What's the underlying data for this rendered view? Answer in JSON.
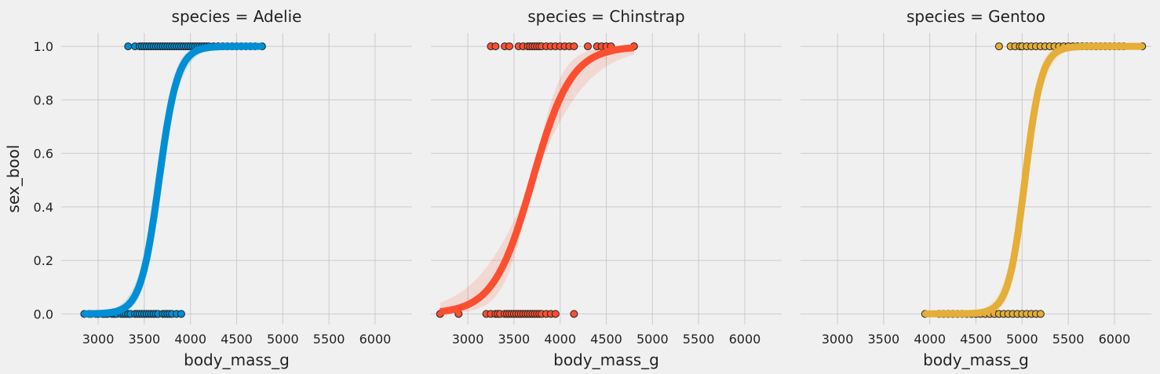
{
  "chart_data": {
    "type": "scatter",
    "layout": "facet-columns",
    "facet_variable": "species",
    "ylabel": "sex_bool",
    "xlim": [
      2600,
      6400
    ],
    "ylim": [
      -0.04,
      1.05
    ],
    "x_ticks": [
      3000,
      3500,
      4000,
      4500,
      5000,
      5500,
      6000
    ],
    "y_ticks": [
      0.0,
      0.2,
      0.4,
      0.6,
      0.8,
      1.0
    ],
    "y_tick_labels": [
      "0.0",
      "0.2",
      "0.4",
      "0.6",
      "0.8",
      "1.0"
    ],
    "grid": true,
    "fit": "logistic regression with confidence band",
    "panels": [
      {
        "title": "species = Adelie",
        "xlabel": "body_mass_g",
        "color": "#008fd5",
        "logistic": {
          "midpoint": 3660,
          "scale": 100
        },
        "band_scale": [
          80,
          125
        ],
        "x_range": [
          2850,
          4775
        ],
        "points_y1": [
          3325,
          3400,
          3450,
          3475,
          3500,
          3525,
          3550,
          3575,
          3600,
          3625,
          3650,
          3675,
          3700,
          3725,
          3750,
          3775,
          3800,
          3825,
          3850,
          3875,
          3900,
          3925,
          3950,
          3975,
          4000,
          4025,
          4050,
          4075,
          4100,
          4125,
          4150,
          4175,
          4200,
          4250,
          4300,
          4350,
          4400,
          4450,
          4500,
          4550,
          4600,
          4650,
          4700,
          4775
        ],
        "points_y0": [
          2850,
          2900,
          2925,
          2975,
          3000,
          3050,
          3075,
          3100,
          3150,
          3175,
          3200,
          3250,
          3275,
          3300,
          3325,
          3350,
          3400,
          3425,
          3450,
          3475,
          3500,
          3525,
          3550,
          3575,
          3600,
          3625,
          3650,
          3700,
          3725,
          3750,
          3775,
          3800,
          3850,
          3900
        ]
      },
      {
        "title": "species = Chinstrap",
        "xlabel": "body_mass_g",
        "color": "#fc4f30",
        "logistic": {
          "midpoint": 3700,
          "scale": 210
        },
        "band_scale": [
          150,
          320
        ],
        "x_range": [
          2700,
          4800
        ],
        "points_y1": [
          3250,
          3300,
          3400,
          3450,
          3550,
          3600,
          3650,
          3675,
          3700,
          3725,
          3750,
          3775,
          3800,
          3850,
          3900,
          3950,
          4000,
          4050,
          4100,
          4150,
          4300,
          4400,
          4450,
          4500,
          4550,
          4800
        ],
        "points_y0": [
          2700,
          2900,
          3200,
          3250,
          3300,
          3325,
          3350,
          3400,
          3425,
          3450,
          3475,
          3500,
          3525,
          3550,
          3575,
          3600,
          3625,
          3650,
          3675,
          3700,
          3725,
          3750,
          3775,
          3800,
          3850,
          3900,
          3950,
          4150
        ]
      },
      {
        "title": "species = Gentoo",
        "xlabel": "body_mass_g",
        "color": "#e5ae38",
        "logistic": {
          "midpoint": 5030,
          "scale": 90
        },
        "band_scale": [
          70,
          115
        ],
        "x_range": [
          3950,
          6300
        ],
        "points_y1": [
          4750,
          4875,
          4925,
          4975,
          5000,
          5050,
          5100,
          5150,
          5200,
          5250,
          5300,
          5350,
          5400,
          5450,
          5500,
          5550,
          5600,
          5650,
          5700,
          5750,
          5800,
          5850,
          5900,
          5950,
          6000,
          6050,
          6100,
          6300
        ],
        "points_y0": [
          3950,
          4100,
          4150,
          4200,
          4250,
          4300,
          4350,
          4400,
          4450,
          4500,
          4550,
          4600,
          4650,
          4700,
          4750,
          4800,
          4850,
          4900,
          4950,
          5000,
          5050,
          5100,
          5150,
          5200
        ]
      }
    ]
  }
}
